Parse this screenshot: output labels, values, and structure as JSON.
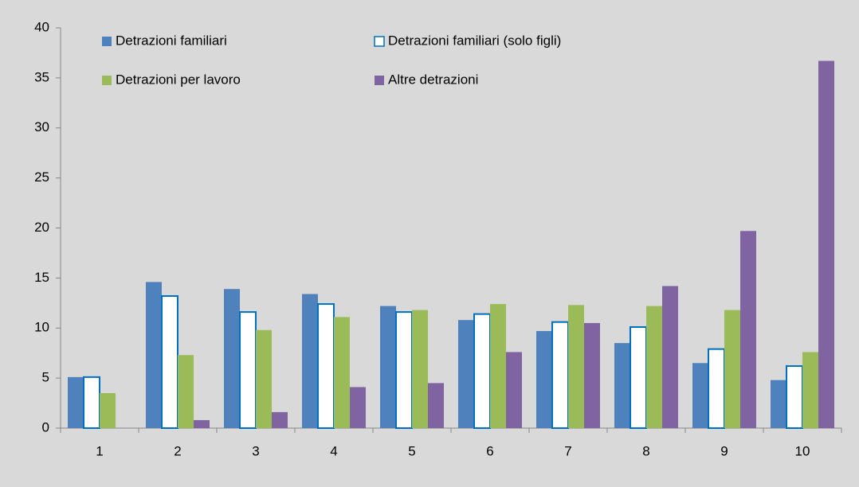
{
  "chart_data": {
    "type": "bar",
    "categories": [
      "1",
      "2",
      "3",
      "4",
      "5",
      "6",
      "7",
      "8",
      "9",
      "10"
    ],
    "series": [
      {
        "name": "Detrazioni familiari",
        "color": "#4f81bd",
        "fill": "#4f81bd",
        "values": [
          5.1,
          14.6,
          13.9,
          13.4,
          12.2,
          10.8,
          9.7,
          8.5,
          6.5,
          4.8
        ]
      },
      {
        "name": "Detrazioni familiari (solo figli)",
        "color": "#0070c0",
        "fill": "#ffffff",
        "values": [
          5.1,
          13.2,
          11.6,
          12.4,
          11.6,
          11.4,
          10.6,
          10.1,
          7.9,
          6.2
        ]
      },
      {
        "name": "Detrazioni per lavoro",
        "color": "#9bbb59",
        "fill": "#9bbb59",
        "values": [
          3.5,
          7.3,
          9.8,
          11.1,
          11.8,
          12.4,
          12.3,
          12.2,
          11.8,
          7.6
        ]
      },
      {
        "name": "Altre detrazioni",
        "color": "#8064a2",
        "fill": "#8064a2",
        "values": [
          0,
          0.8,
          1.6,
          4.1,
          4.5,
          7.6,
          10.5,
          14.2,
          19.7,
          36.7
        ]
      }
    ],
    "ylim": [
      0,
      40
    ],
    "yticks": [
      0,
      5,
      10,
      15,
      20,
      25,
      30,
      35,
      40
    ],
    "grid": false,
    "legend": "top-left"
  }
}
